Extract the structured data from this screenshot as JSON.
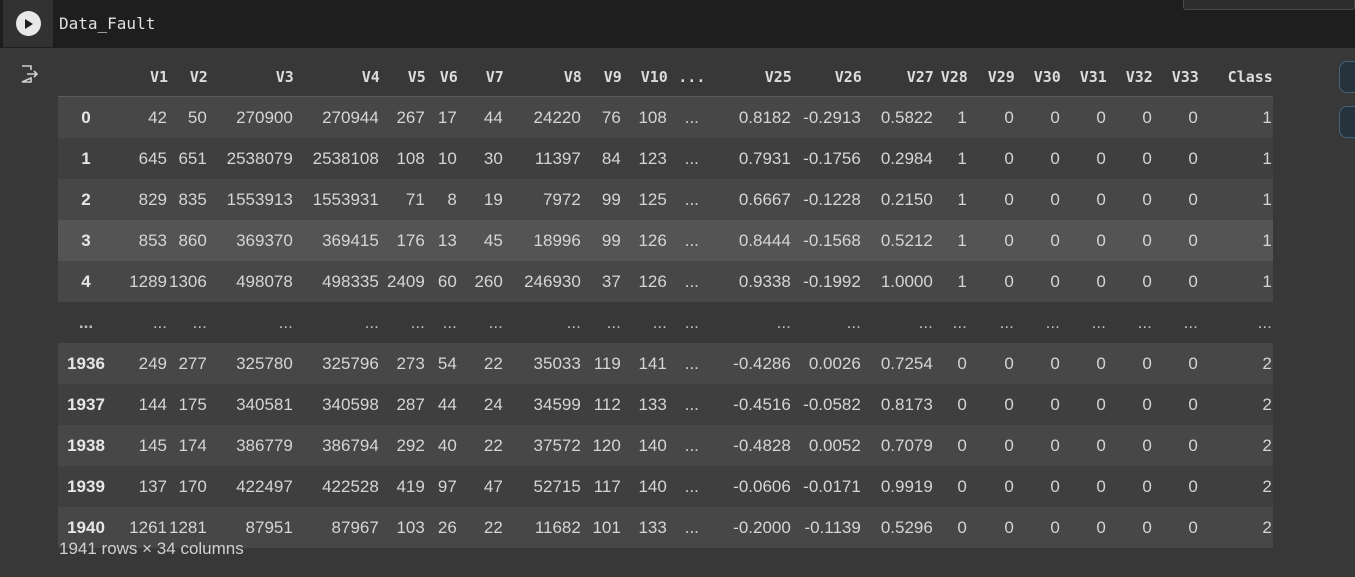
{
  "cell": {
    "code": "Data_Fault"
  },
  "table": {
    "index_header": "",
    "columns": [
      "V1",
      "V2",
      "V3",
      "V4",
      "V5",
      "V6",
      "V7",
      "V8",
      "V9",
      "V10",
      "...",
      "V25",
      "V26",
      "V27",
      "V28",
      "V29",
      "V30",
      "V31",
      "V32",
      "V33",
      "Class"
    ],
    "rows": [
      {
        "index": "0",
        "cells": [
          "42",
          "50",
          "270900",
          "270944",
          "267",
          "17",
          "44",
          "24220",
          "76",
          "108",
          "...",
          "0.8182",
          "-0.2913",
          "0.5822",
          "1",
          "0",
          "0",
          "0",
          "0",
          "0",
          "1"
        ]
      },
      {
        "index": "1",
        "cells": [
          "645",
          "651",
          "2538079",
          "2538108",
          "108",
          "10",
          "30",
          "11397",
          "84",
          "123",
          "...",
          "0.7931",
          "-0.1756",
          "0.2984",
          "1",
          "0",
          "0",
          "0",
          "0",
          "0",
          "1"
        ]
      },
      {
        "index": "2",
        "cells": [
          "829",
          "835",
          "1553913",
          "1553931",
          "71",
          "8",
          "19",
          "7972",
          "99",
          "125",
          "...",
          "0.6667",
          "-0.1228",
          "0.2150",
          "1",
          "0",
          "0",
          "0",
          "0",
          "0",
          "1"
        ]
      },
      {
        "index": "3",
        "cells": [
          "853",
          "860",
          "369370",
          "369415",
          "176",
          "13",
          "45",
          "18996",
          "99",
          "126",
          "...",
          "0.8444",
          "-0.1568",
          "0.5212",
          "1",
          "0",
          "0",
          "0",
          "0",
          "0",
          "1"
        ]
      },
      {
        "index": "4",
        "cells": [
          "1289",
          "1306",
          "498078",
          "498335",
          "2409",
          "60",
          "260",
          "246930",
          "37",
          "126",
          "...",
          "0.9338",
          "-0.1992",
          "1.0000",
          "1",
          "0",
          "0",
          "0",
          "0",
          "0",
          "1"
        ]
      },
      {
        "index": "...",
        "cells": [
          "...",
          "...",
          "...",
          "...",
          "...",
          "...",
          "...",
          "...",
          "...",
          "...",
          "...",
          "...",
          "...",
          "...",
          "...",
          "...",
          "...",
          "...",
          "...",
          "...",
          "..."
        ]
      },
      {
        "index": "1936",
        "cells": [
          "249",
          "277",
          "325780",
          "325796",
          "273",
          "54",
          "22",
          "35033",
          "119",
          "141",
          "...",
          "-0.4286",
          "0.0026",
          "0.7254",
          "0",
          "0",
          "0",
          "0",
          "0",
          "0",
          "2"
        ]
      },
      {
        "index": "1937",
        "cells": [
          "144",
          "175",
          "340581",
          "340598",
          "287",
          "44",
          "24",
          "34599",
          "112",
          "133",
          "...",
          "-0.4516",
          "-0.0582",
          "0.8173",
          "0",
          "0",
          "0",
          "0",
          "0",
          "0",
          "2"
        ]
      },
      {
        "index": "1938",
        "cells": [
          "145",
          "174",
          "386779",
          "386794",
          "292",
          "40",
          "22",
          "37572",
          "120",
          "140",
          "...",
          "-0.4828",
          "0.0052",
          "0.7079",
          "0",
          "0",
          "0",
          "0",
          "0",
          "0",
          "2"
        ]
      },
      {
        "index": "1939",
        "cells": [
          "137",
          "170",
          "422497",
          "422528",
          "419",
          "97",
          "47",
          "52715",
          "117",
          "140",
          "...",
          "-0.0606",
          "-0.0171",
          "0.9919",
          "0",
          "0",
          "0",
          "0",
          "0",
          "0",
          "2"
        ]
      },
      {
        "index": "1940",
        "cells": [
          "1261",
          "1281",
          "87951",
          "87967",
          "103",
          "26",
          "22",
          "11682",
          "101",
          "133",
          "...",
          "-0.2000",
          "-0.1139",
          "0.5296",
          "0",
          "0",
          "0",
          "0",
          "0",
          "0",
          "2"
        ]
      }
    ],
    "footer": "1941 rows × 34 columns"
  },
  "icons": {
    "run": "play-icon",
    "output": "output-redirect-icon",
    "table_view": "table-view-icon",
    "chart_view": "chart-view-icon"
  },
  "colors": {
    "background": "#383838",
    "cell_top": "#1e1e1e",
    "row_even": "#474747",
    "row_odd": "#3f3f3f",
    "row_highlight": "#545454"
  }
}
